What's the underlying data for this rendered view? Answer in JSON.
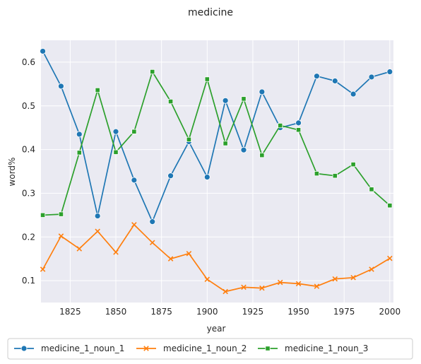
{
  "chart_data": {
    "type": "line",
    "title": "medicine",
    "xlabel": "year",
    "ylabel": "word%",
    "xlim": [
      1809,
      2002
    ],
    "ylim": [
      0.05,
      0.65
    ],
    "xticks": [
      1825,
      1850,
      1875,
      1900,
      1925,
      1950,
      1975,
      2000
    ],
    "yticks": [
      0.1,
      0.2,
      0.3,
      0.4,
      0.5,
      0.6
    ],
    "grid": true,
    "legend_position": "bottom",
    "x": [
      1810,
      1820,
      1830,
      1840,
      1850,
      1860,
      1870,
      1880,
      1890,
      1900,
      1910,
      1920,
      1930,
      1940,
      1950,
      1960,
      1970,
      1980,
      1990,
      2000
    ],
    "series": [
      {
        "name": "medicine_1_noun_1",
        "color": "#1f77b4",
        "marker": "circle",
        "values": [
          0.625,
          0.545,
          0.435,
          0.248,
          0.441,
          0.33,
          0.235,
          0.34,
          0.418,
          0.337,
          0.512,
          0.399,
          0.532,
          0.45,
          0.461,
          0.568,
          0.557,
          0.527,
          0.566,
          0.578
        ]
      },
      {
        "name": "medicine_1_noun_2",
        "color": "#ff7f0e",
        "marker": "x",
        "values": [
          0.126,
          0.202,
          0.173,
          0.213,
          0.165,
          0.228,
          0.187,
          0.15,
          0.162,
          0.103,
          0.075,
          0.085,
          0.083,
          0.096,
          0.093,
          0.087,
          0.104,
          0.107,
          0.126,
          0.151
        ]
      },
      {
        "name": "medicine_1_noun_3",
        "color": "#2ca02c",
        "marker": "square",
        "values": [
          0.25,
          0.252,
          0.393,
          0.536,
          0.394,
          0.441,
          0.578,
          0.51,
          0.423,
          0.561,
          0.414,
          0.516,
          0.387,
          0.455,
          0.445,
          0.345,
          0.34,
          0.366,
          0.309,
          0.272
        ]
      }
    ]
  }
}
